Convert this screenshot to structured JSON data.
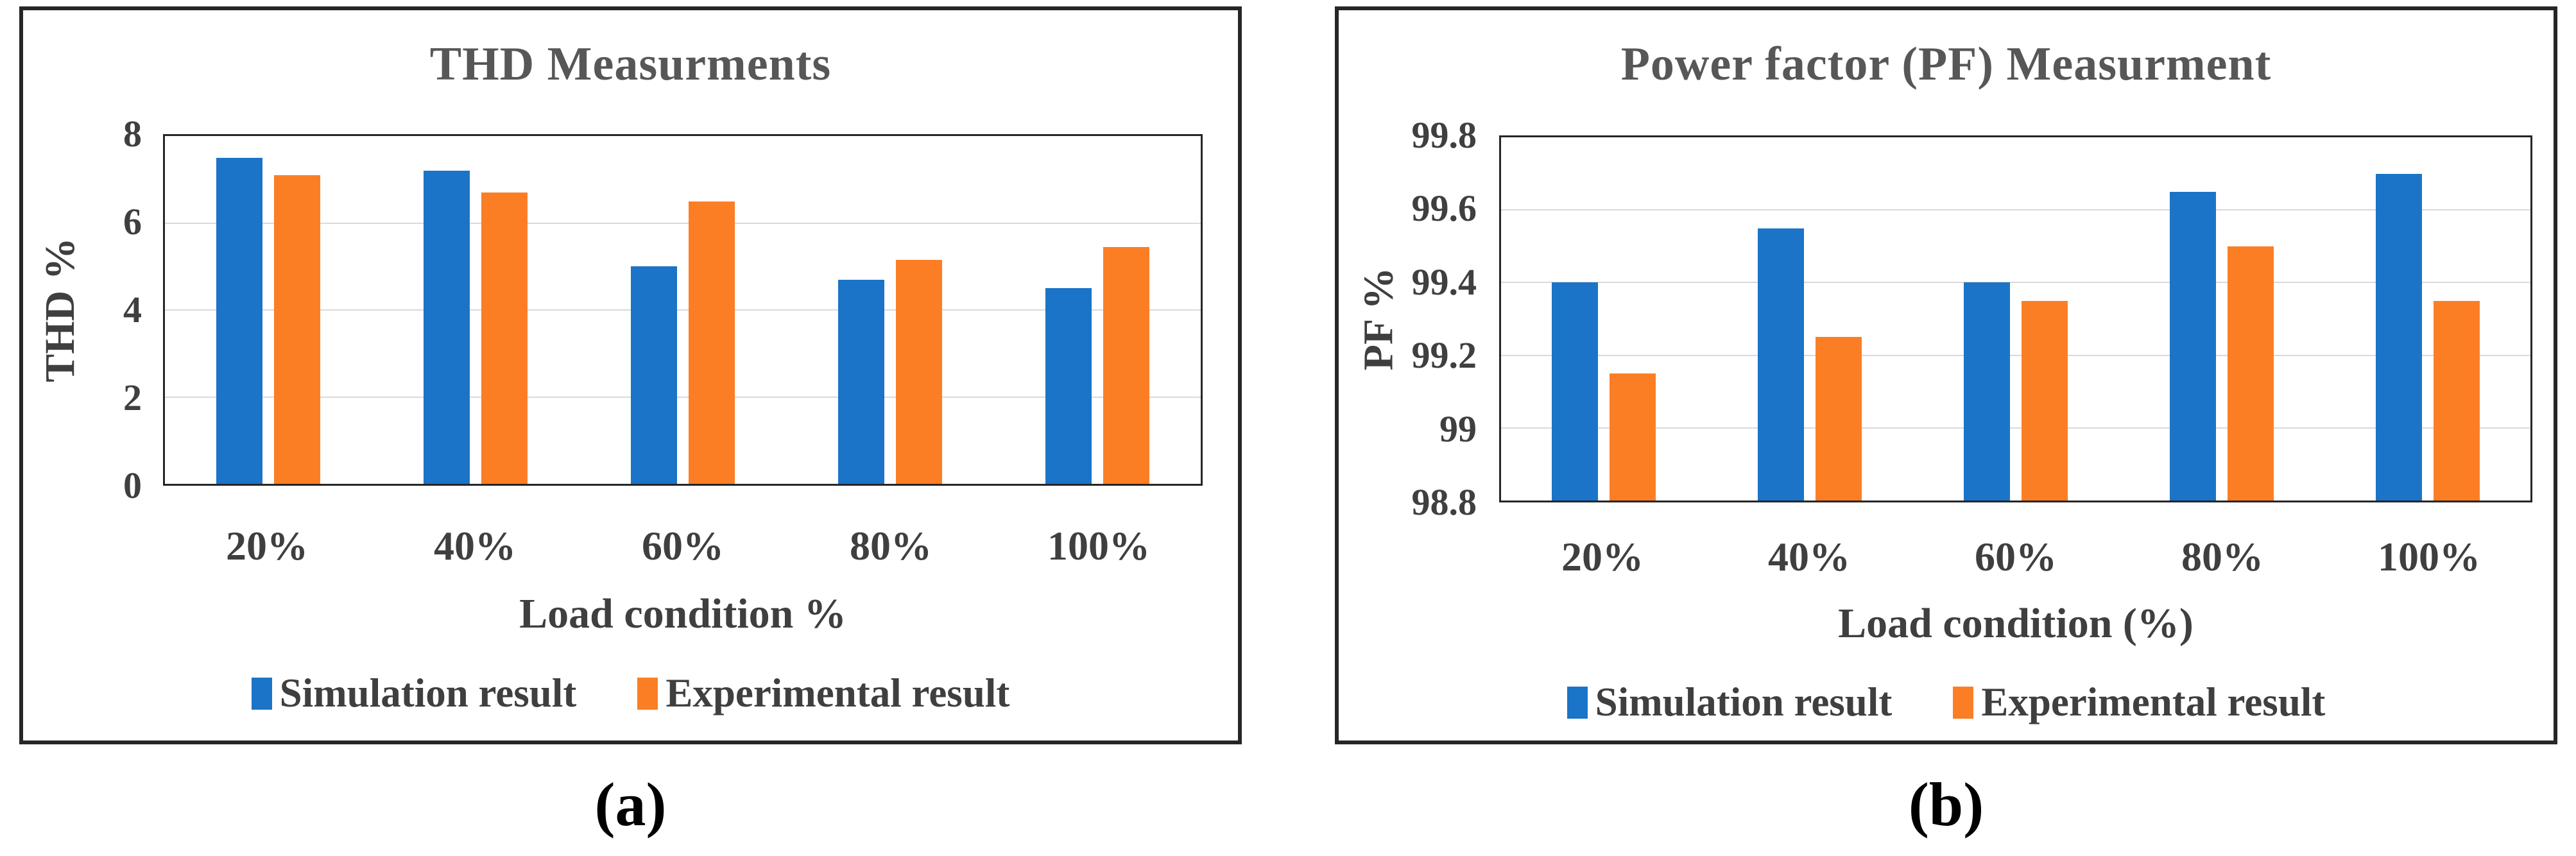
{
  "figure": {
    "captions": [
      "(a)",
      "(b)"
    ]
  },
  "colors": {
    "simulation_blue": "#1B74C7",
    "experimental_orange": "#FC7E24",
    "title_gray": "#575757",
    "axis_text_gray": "#3F3F3F",
    "gridline_gray": "#D9D9D9",
    "frame_black": "#262626"
  },
  "chart_data": [
    {
      "type": "bar",
      "title": "THD Measurments",
      "xlabel": "Load condition %",
      "ylabel": "THD %",
      "categories": [
        "20%",
        "40%",
        "60%",
        "80%",
        "100%"
      ],
      "series": [
        {
          "name": "Simulation result",
          "color": "#1B74C7",
          "values": [
            7.5,
            7.2,
            5.0,
            4.7,
            4.5
          ]
        },
        {
          "name": "Experimental result",
          "color": "#FC7E24",
          "values": [
            7.1,
            6.7,
            6.5,
            5.15,
            5.45
          ]
        }
      ],
      "ylim": [
        0,
        8
      ],
      "yticks": [
        0,
        2,
        4,
        6,
        8
      ],
      "ytick_labels": [
        "0",
        "2",
        "4",
        "6",
        "8"
      ],
      "grid": "horizontal",
      "legend_position": "bottom"
    },
    {
      "type": "bar",
      "title": "Power factor (PF) Measurment",
      "xlabel": "Load condition (%)",
      "ylabel": "PF %",
      "categories": [
        "20%",
        "40%",
        "60%",
        "80%",
        "100%"
      ],
      "series": [
        {
          "name": "Simulation result",
          "color": "#1B74C7",
          "values": [
            99.4,
            99.55,
            99.4,
            99.65,
            99.7
          ]
        },
        {
          "name": "Experimental result",
          "color": "#FC7E24",
          "values": [
            99.15,
            99.25,
            99.35,
            99.5,
            99.35
          ]
        }
      ],
      "ylim": [
        98.8,
        99.8
      ],
      "yticks": [
        98.8,
        99.0,
        99.2,
        99.4,
        99.6,
        99.8
      ],
      "ytick_labels": [
        "98.8",
        "99",
        "99.2",
        "99.4",
        "99.6",
        "99.8"
      ],
      "grid": "horizontal",
      "legend_position": "bottom"
    }
  ]
}
